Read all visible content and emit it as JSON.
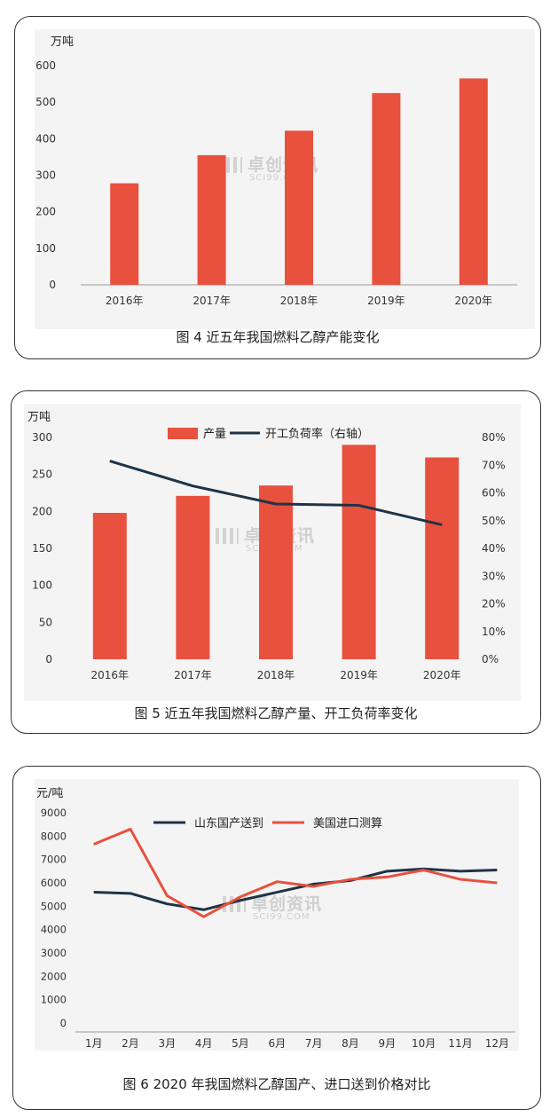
{
  "watermark": {
    "text": "卓创资讯",
    "sub": "SCI99.COM"
  },
  "chart_data": [
    {
      "type": "bar",
      "unit": "万吨",
      "categories": [
        "2016年",
        "2017年",
        "2018年",
        "2019年",
        "2020年"
      ],
      "values": [
        278,
        355,
        422,
        525,
        565
      ],
      "ylim": [
        0,
        600
      ],
      "yticks": [
        0,
        100,
        200,
        300,
        400,
        500,
        600
      ],
      "bar_color": "#e8513e",
      "caption": "图 4  近五年我国燃料乙醇产能变化"
    },
    {
      "type": "bar",
      "unit": "万吨",
      "categories": [
        "2016年",
        "2017年",
        "2018年",
        "2019年",
        "2020年"
      ],
      "series": [
        {
          "name": "产量",
          "type": "bar",
          "axis": "left",
          "color": "#e8513e",
          "values": [
            198,
            221,
            235,
            290,
            273
          ]
        },
        {
          "name": "开工负荷率（右轴）",
          "type": "line",
          "axis": "right",
          "color": "#1f3345",
          "values": [
            0.715,
            0.625,
            0.56,
            0.555,
            0.485
          ]
        }
      ],
      "ylim": [
        0,
        300
      ],
      "yticks": [
        0,
        50,
        100,
        150,
        200,
        250,
        300
      ],
      "y2lim": [
        0,
        0.8
      ],
      "y2ticks": [
        "0%",
        "10%",
        "20%",
        "30%",
        "40%",
        "50%",
        "60%",
        "70%",
        "80%"
      ],
      "legend": "top-center",
      "caption": "图 5  近五年我国燃料乙醇产量、开工负荷率变化"
    },
    {
      "type": "line",
      "unit": "元/吨",
      "categories": [
        "1月",
        "2月",
        "3月",
        "4月",
        "5月",
        "6月",
        "7月",
        "8月",
        "9月",
        "10月",
        "11月",
        "12月"
      ],
      "series": [
        {
          "name": "山东国产送到",
          "color": "#1f3345",
          "values": [
            5600,
            5550,
            5100,
            4850,
            5250,
            5600,
            5950,
            6100,
            6500,
            6600,
            6500,
            6550
          ]
        },
        {
          "name": "美国进口测算",
          "color": "#e8513e",
          "values": [
            7650,
            8300,
            5450,
            4550,
            5400,
            6050,
            5850,
            6150,
            6250,
            6550,
            6150,
            6000
          ]
        }
      ],
      "ylim": [
        0,
        9000
      ],
      "yticks": [
        0,
        1000,
        2000,
        3000,
        4000,
        5000,
        6000,
        7000,
        8000,
        9000
      ],
      "legend": "top-center",
      "caption": "图 6  2020 年我国燃料乙醇国产、进口送到价格对比"
    }
  ]
}
